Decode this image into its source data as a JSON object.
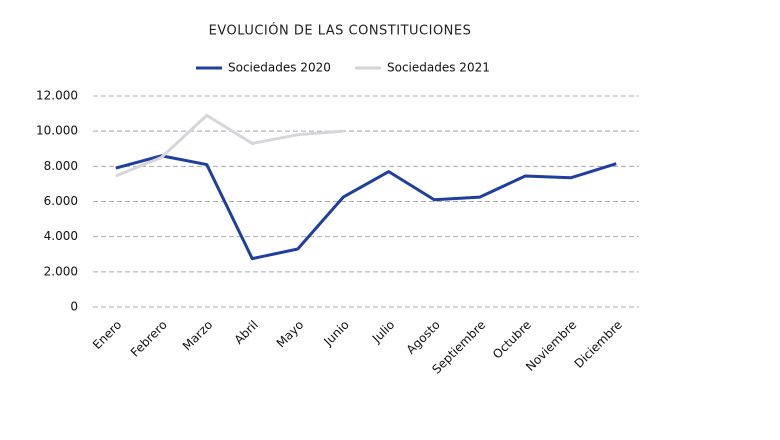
{
  "chart_data": {
    "type": "line",
    "title": "EVOLUCIÓN DE LAS CONSTITUCIONES",
    "categories": [
      "Enero",
      "Febrero",
      "Marzo",
      "Abril",
      "Mayo",
      "Junio",
      "Julio",
      "Agosto",
      "Septiembre",
      "Octubre",
      "Noviembre",
      "Diciembre"
    ],
    "series": [
      {
        "name": "Sociedades 2020",
        "color": "#1f3fa0",
        "values": [
          7900,
          8600,
          8100,
          2750,
          3300,
          6250,
          7700,
          6100,
          6250,
          7450,
          7350,
          8150
        ]
      },
      {
        "name": "Sociedades 2021",
        "color": "#d6d6da",
        "values": [
          7450,
          8500,
          10900,
          9300,
          9800,
          10000,
          null,
          null,
          null,
          null,
          null,
          null
        ]
      }
    ],
    "ylim": [
      0,
      12000
    ],
    "yticks": [
      0,
      {
        "value": 2000,
        "label": "2.000"
      },
      {
        "value": 4000,
        "label": "4.000"
      },
      {
        "value": 6000,
        "label": "6.000"
      },
      {
        "value": 8000,
        "label": "8.000"
      },
      {
        "value": 10000,
        "label": "10.000"
      },
      {
        "value": 12000,
        "label": "12.000"
      }
    ],
    "grid": true,
    "legend": "top"
  }
}
